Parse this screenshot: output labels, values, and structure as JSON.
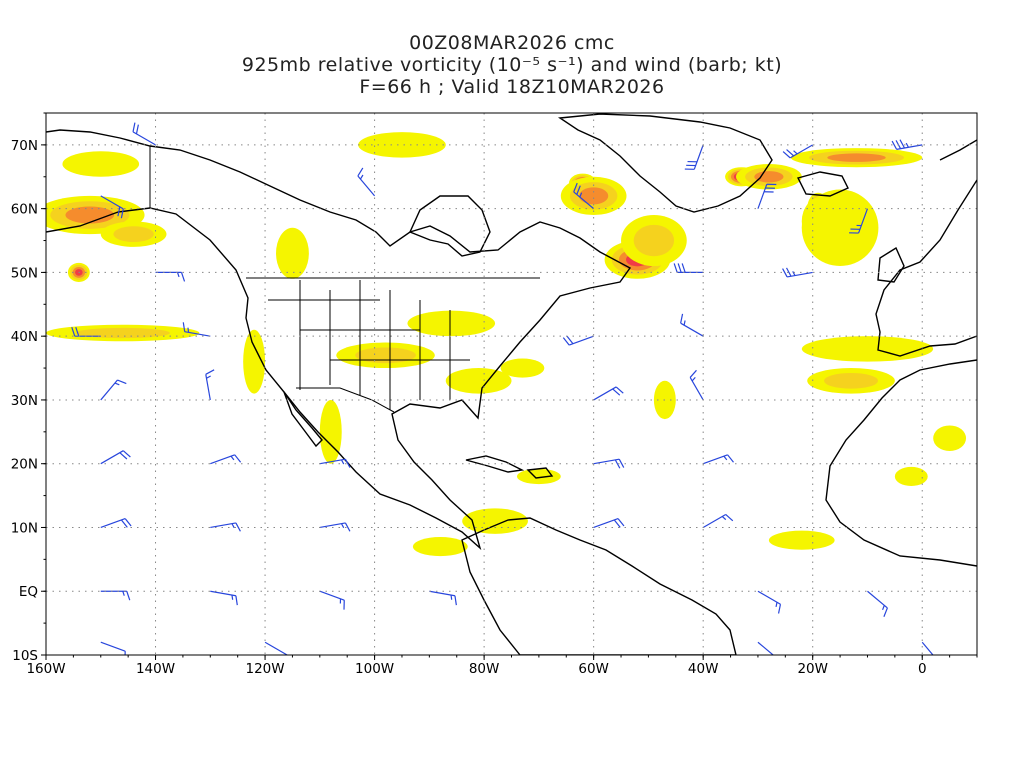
{
  "title": {
    "line1": "00Z08MAR2026 cmc",
    "line2": "925mb relative vorticity (10⁻⁵ s⁻¹) and wind (barb; kt)",
    "line3": "F=66 h ; Valid 18Z10MAR2026"
  },
  "axes": {
    "lon_range": [
      -160,
      10
    ],
    "lat_range": [
      -10,
      75
    ],
    "x_ticks": [
      {
        "lon": -160,
        "label": "160W"
      },
      {
        "lon": -140,
        "label": "140W"
      },
      {
        "lon": -120,
        "label": "120W"
      },
      {
        "lon": -100,
        "label": "100W"
      },
      {
        "lon": -80,
        "label": "80W"
      },
      {
        "lon": -60,
        "label": "60W"
      },
      {
        "lon": -40,
        "label": "40W"
      },
      {
        "lon": -20,
        "label": "20W"
      },
      {
        "lon": 0,
        "label": "0"
      }
    ],
    "y_ticks": [
      {
        "lat": 70,
        "label": "70N"
      },
      {
        "lat": 60,
        "label": "60N"
      },
      {
        "lat": 50,
        "label": "50N"
      },
      {
        "lat": 40,
        "label": "40N"
      },
      {
        "lat": 30,
        "label": "30N"
      },
      {
        "lat": 20,
        "label": "20N"
      },
      {
        "lat": 10,
        "label": "10N"
      },
      {
        "lat": 0,
        "label": "EQ"
      },
      {
        "lat": -10,
        "label": "10S"
      }
    ],
    "grid": true
  },
  "colors": {
    "shade_1": "#f5f500",
    "shade_2": "#f5d21e",
    "shade_3": "#f58c2d",
    "shade_4": "#f03c46",
    "shade_5": "#f03cdc",
    "barb": "#2846dc",
    "coast": "#000000",
    "grid": "#888888"
  },
  "vorticity_features": [
    {
      "lon": -152,
      "lat": 59,
      "dlon": 10,
      "dlat": 3,
      "level": 3
    },
    {
      "lon": -144,
      "lat": 56,
      "dlon": 6,
      "dlat": 2,
      "level": 2
    },
    {
      "lon": -154,
      "lat": 50,
      "dlon": 2,
      "dlat": 1.5,
      "level": 4
    },
    {
      "lon": -150,
      "lat": 67,
      "dlon": 7,
      "dlat": 2,
      "level": 1
    },
    {
      "lon": -146,
      "lat": 40.5,
      "dlon": 14,
      "dlat": 1.3,
      "level": 2
    },
    {
      "lon": -62,
      "lat": 64,
      "dlon": 2.5,
      "dlat": 1.5,
      "level": 5
    },
    {
      "lon": -60,
      "lat": 62,
      "dlon": 6,
      "dlat": 3,
      "level": 3
    },
    {
      "lon": -52,
      "lat": 52,
      "dlon": 6,
      "dlat": 3,
      "level": 4
    },
    {
      "lon": -49,
      "lat": 55,
      "dlon": 6,
      "dlat": 4,
      "level": 2
    },
    {
      "lon": -33,
      "lat": 65,
      "dlon": 3,
      "dlat": 1.5,
      "level": 5
    },
    {
      "lon": -28,
      "lat": 65,
      "dlon": 6,
      "dlat": 2,
      "level": 3
    },
    {
      "lon": -12,
      "lat": 68,
      "dlon": 12,
      "dlat": 1.5,
      "level": 3
    },
    {
      "lon": -19,
      "lat": 60,
      "dlon": 2,
      "dlat": 2.5,
      "level": 5
    },
    {
      "lon": -18,
      "lat": 58,
      "dlon": 4,
      "dlat": 4,
      "level": 3
    },
    {
      "lon": -15,
      "lat": 57,
      "dlon": 7,
      "dlat": 6,
      "level": 1
    },
    {
      "lon": -98,
      "lat": 37,
      "dlon": 9,
      "dlat": 2,
      "level": 2
    },
    {
      "lon": -86,
      "lat": 42,
      "dlon": 8,
      "dlat": 2,
      "level": 1
    },
    {
      "lon": -81,
      "lat": 33,
      "dlon": 6,
      "dlat": 2,
      "level": 1
    },
    {
      "lon": -73,
      "lat": 35,
      "dlon": 4,
      "dlat": 1.5,
      "level": 1
    },
    {
      "lon": -78,
      "lat": 11,
      "dlon": 6,
      "dlat": 2,
      "level": 1
    },
    {
      "lon": -88,
      "lat": 7,
      "dlon": 5,
      "dlat": 1.5,
      "level": 1
    },
    {
      "lon": -47,
      "lat": 30,
      "dlon": 2,
      "dlat": 3,
      "level": 1
    },
    {
      "lon": -13,
      "lat": 33,
      "dlon": 8,
      "dlat": 2,
      "level": 2
    },
    {
      "lon": -10,
      "lat": 38,
      "dlon": 12,
      "dlat": 2,
      "level": 1
    },
    {
      "lon": -22,
      "lat": 8,
      "dlon": 6,
      "dlat": 1.5,
      "level": 1
    },
    {
      "lon": 5,
      "lat": 24,
      "dlon": 3,
      "dlat": 2,
      "level": 1
    },
    {
      "lon": -122,
      "lat": 36,
      "dlon": 2,
      "dlat": 5,
      "level": 1
    },
    {
      "lon": -108,
      "lat": 25,
      "dlon": 2,
      "dlat": 5,
      "level": 1
    },
    {
      "lon": -95,
      "lat": 70,
      "dlon": 8,
      "dlat": 2,
      "level": 1
    },
    {
      "lon": -115,
      "lat": 53,
      "dlon": 3,
      "dlat": 4,
      "level": 1
    },
    {
      "lon": -70,
      "lat": 18,
      "dlon": 4,
      "dlat": 1.2,
      "level": 1
    },
    {
      "lon": -2,
      "lat": 18,
      "dlon": 3,
      "dlat": 1.5,
      "level": 1
    }
  ],
  "wind_barbs": [
    {
      "lon": -160,
      "lat": 70,
      "dir": 290,
      "spd": 15
    },
    {
      "lon": -140,
      "lat": 70,
      "dir": 300,
      "spd": 20
    },
    {
      "lon": -40,
      "lat": 70,
      "dir": 200,
      "spd": 30
    },
    {
      "lon": -20,
      "lat": 70,
      "dir": 240,
      "spd": 25
    },
    {
      "lon": 0,
      "lat": 70,
      "dir": 260,
      "spd": 35
    },
    {
      "lon": -150,
      "lat": 62,
      "dir": 120,
      "spd": 20
    },
    {
      "lon": -100,
      "lat": 62,
      "dir": 320,
      "spd": 15
    },
    {
      "lon": -60,
      "lat": 60,
      "dir": 310,
      "spd": 25
    },
    {
      "lon": -30,
      "lat": 60,
      "dir": 20,
      "spd": 30
    },
    {
      "lon": -10,
      "lat": 60,
      "dir": 200,
      "spd": 25
    },
    {
      "lon": -140,
      "lat": 50,
      "dir": 90,
      "spd": 15
    },
    {
      "lon": -40,
      "lat": 50,
      "dir": 270,
      "spd": 30
    },
    {
      "lon": -20,
      "lat": 50,
      "dir": 260,
      "spd": 25
    },
    {
      "lon": -150,
      "lat": 40,
      "dir": 270,
      "spd": 20
    },
    {
      "lon": -130,
      "lat": 40,
      "dir": 280,
      "spd": 15
    },
    {
      "lon": -60,
      "lat": 40,
      "dir": 250,
      "spd": 20
    },
    {
      "lon": -40,
      "lat": 40,
      "dir": 300,
      "spd": 15
    },
    {
      "lon": -150,
      "lat": 30,
      "dir": 40,
      "spd": 15
    },
    {
      "lon": -130,
      "lat": 30,
      "dir": 350,
      "spd": 15
    },
    {
      "lon": -60,
      "lat": 30,
      "dir": 60,
      "spd": 20
    },
    {
      "lon": -40,
      "lat": 30,
      "dir": 330,
      "spd": 15
    },
    {
      "lon": -150,
      "lat": 20,
      "dir": 60,
      "spd": 20
    },
    {
      "lon": -130,
      "lat": 20,
      "dir": 70,
      "spd": 15
    },
    {
      "lon": -110,
      "lat": 20,
      "dir": 80,
      "spd": 15
    },
    {
      "lon": -60,
      "lat": 20,
      "dir": 80,
      "spd": 20
    },
    {
      "lon": -40,
      "lat": 20,
      "dir": 70,
      "spd": 15
    },
    {
      "lon": -150,
      "lat": 10,
      "dir": 70,
      "spd": 20
    },
    {
      "lon": -130,
      "lat": 10,
      "dir": 80,
      "spd": 15
    },
    {
      "lon": -110,
      "lat": 10,
      "dir": 80,
      "spd": 15
    },
    {
      "lon": -60,
      "lat": 10,
      "dir": 70,
      "spd": 20
    },
    {
      "lon": -40,
      "lat": 10,
      "dir": 60,
      "spd": 15
    },
    {
      "lon": -150,
      "lat": 0,
      "dir": 90,
      "spd": 15
    },
    {
      "lon": -130,
      "lat": 0,
      "dir": 100,
      "spd": 15
    },
    {
      "lon": -110,
      "lat": 0,
      "dir": 110,
      "spd": 15
    },
    {
      "lon": -90,
      "lat": 0,
      "dir": 100,
      "spd": 15
    },
    {
      "lon": -30,
      "lat": 0,
      "dir": 120,
      "spd": 15
    },
    {
      "lon": -10,
      "lat": 0,
      "dir": 130,
      "spd": 15
    },
    {
      "lon": -150,
      "lat": -8,
      "dir": 110,
      "spd": 10
    },
    {
      "lon": -120,
      "lat": -8,
      "dir": 120,
      "spd": 10
    },
    {
      "lon": -30,
      "lat": -8,
      "dir": 130,
      "spd": 15
    },
    {
      "lon": 0,
      "lat": -8,
      "dir": 140,
      "spd": 10
    }
  ]
}
